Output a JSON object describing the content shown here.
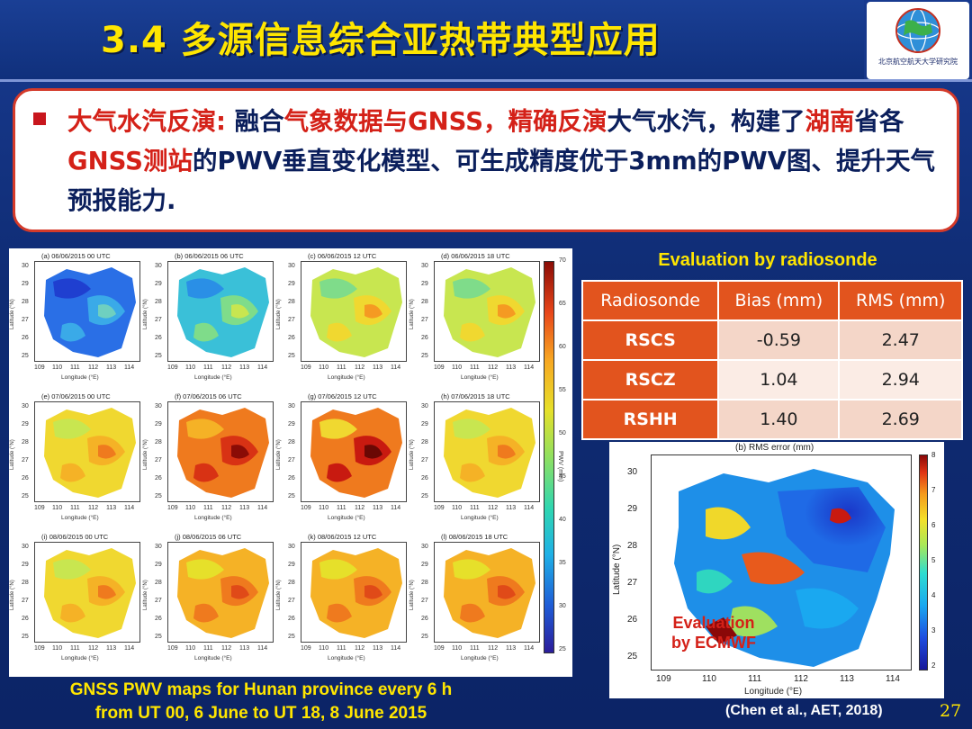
{
  "slide": {
    "title": "3.4  多源信息综合亚热带典型应用",
    "logo_text": "北京航空航天大学研究院",
    "page_number": "27",
    "colors": {
      "background": "#10307c",
      "title": "#ffe600",
      "accent_red": "#d42118",
      "table_header": "#e2541e"
    }
  },
  "callout": {
    "segments": [
      {
        "text": "大气水汽反演:",
        "color": "red"
      },
      {
        "text": " 融合",
        "color": "blue"
      },
      {
        "text": "气象数据与GNSS，精确反演",
        "color": "red"
      },
      {
        "text": "大气水汽，构建了",
        "color": "blue"
      },
      {
        "text": "湖南",
        "color": "red"
      },
      {
        "text": "省各",
        "color": "blue"
      },
      {
        "text": "GNSS测站",
        "color": "red"
      },
      {
        "text": "的PWV垂直变化模型、可生成精度优于3mm的PWV图、提升天气预报能力.",
        "color": "blue"
      }
    ]
  },
  "maps": {
    "panels": [
      {
        "label": "(a) 06/06/2015 00 UTC",
        "scheme": "blue"
      },
      {
        "label": "(b) 06/06/2015 06 UTC",
        "scheme": "bluegreen"
      },
      {
        "label": "(c) 06/06/2015 12 UTC",
        "scheme": "green"
      },
      {
        "label": "(d) 06/06/2015 18 UTC",
        "scheme": "green"
      },
      {
        "label": "(e) 07/06/2015 00 UTC",
        "scheme": "yellow"
      },
      {
        "label": "(f) 07/06/2015 06 UTC",
        "scheme": "red"
      },
      {
        "label": "(g) 07/06/2015 12 UTC",
        "scheme": "darkred"
      },
      {
        "label": "(h) 07/06/2015 18 UTC",
        "scheme": "yellow"
      },
      {
        "label": "(i) 08/06/2015 00 UTC",
        "scheme": "yellow"
      },
      {
        "label": "(j) 08/06/2015 06 UTC",
        "scheme": "orange"
      },
      {
        "label": "(k) 08/06/2015 12 UTC",
        "scheme": "orange"
      },
      {
        "label": "(l) 08/06/2015 18 UTC",
        "scheme": "orange"
      }
    ],
    "y_axis_label": "Latitude (°N)",
    "x_axis_label": "Longitude (°E)",
    "y_ticks": [
      "30",
      "29",
      "28",
      "27",
      "26",
      "25"
    ],
    "x_ticks": [
      "109",
      "110",
      "111",
      "112",
      "113",
      "114"
    ],
    "colorbar_ticks": [
      "70",
      "65",
      "60",
      "55",
      "50",
      "45",
      "40",
      "35",
      "30",
      "25"
    ],
    "colorbar_label": "PWV (mm)",
    "caption_line1": "GNSS PWV maps for Hunan province every 6 h",
    "caption_line2": "from UT 00, 6 June to UT 18, 8 June 2015"
  },
  "evaluation": {
    "heading": "Evaluation by radiosonde",
    "headers": [
      "Radiosonde",
      "Bias (mm)",
      "RMS (mm)"
    ],
    "rows": [
      {
        "name": "RSCS",
        "bias": "-0.59",
        "rms": "2.47"
      },
      {
        "name": "RSCZ",
        "bias": "1.04",
        "rms": "2.94"
      },
      {
        "name": "RSHH",
        "bias": "1.40",
        "rms": "2.69"
      }
    ]
  },
  "rms_map": {
    "title": "(b) RMS error (mm)",
    "y_ticks": [
      "30",
      "29",
      "28",
      "27",
      "26",
      "25"
    ],
    "x_ticks": [
      "109",
      "110",
      "111",
      "112",
      "113",
      "114"
    ],
    "x_label": "Longitude (°E)",
    "y_label": "Latitude (°N)",
    "colorbar_ticks": [
      "8",
      "7",
      "6",
      "5",
      "4",
      "3",
      "2"
    ],
    "overlay_line1": "Evaluation",
    "overlay_line2": "by ECMWF"
  },
  "citation": "(Chen et al., AET, 2018)"
}
